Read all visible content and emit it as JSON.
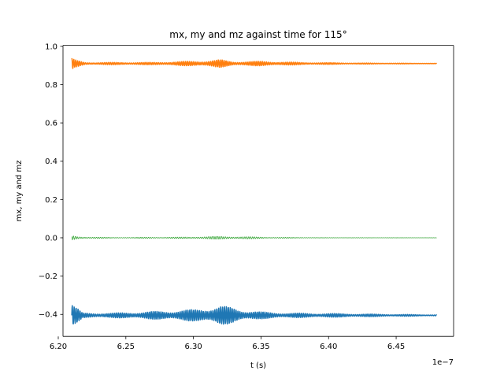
{
  "chart_data": {
    "type": "line",
    "title": "mx, my and mz against time for 115°",
    "xlabel": "t (s)",
    "ylabel": "mx, my and mz",
    "x_offset_label": "1e−7",
    "xlim": [
      6.2035,
      6.4925
    ],
    "ylim": [
      -0.515,
      1.005
    ],
    "x_ticks": [
      6.2,
      6.25,
      6.3,
      6.35,
      6.4,
      6.45
    ],
    "x_tick_labels": [
      "6.20",
      "6.25",
      "6.30",
      "6.35",
      "6.40",
      "6.45"
    ],
    "y_ticks": [
      -0.4,
      -0.2,
      0.0,
      0.2,
      0.4,
      0.6,
      0.8,
      1.0
    ],
    "y_tick_labels": [
      "−0.4",
      "−0.2",
      "0.0",
      "0.2",
      "0.4",
      "0.6",
      "0.8",
      "1.0"
    ],
    "x_range": [
      6.21,
      6.48
    ],
    "grid": false,
    "series": [
      {
        "color": "#1f77b4",
        "stroke_width": 1.5,
        "baseline": -0.405,
        "oscillation_envelope": [
          {
            "x": 6.21,
            "amp": 0.07
          },
          {
            "x": 6.212,
            "amp": 0.05
          },
          {
            "x": 6.218,
            "amp": 0.012
          },
          {
            "x": 6.24,
            "amp": 0.012
          },
          {
            "x": 6.27,
            "amp": 0.02
          },
          {
            "x": 6.3,
            "amp": 0.03
          },
          {
            "x": 6.31,
            "amp": 0.04
          },
          {
            "x": 6.32,
            "amp": 0.05
          },
          {
            "x": 6.33,
            "amp": 0.04
          },
          {
            "x": 6.34,
            "amp": 0.025
          },
          {
            "x": 6.35,
            "amp": 0.018
          },
          {
            "x": 6.37,
            "amp": 0.012
          },
          {
            "x": 6.4,
            "amp": 0.01
          },
          {
            "x": 6.44,
            "amp": 0.006
          },
          {
            "x": 6.48,
            "amp": 0.003
          }
        ]
      },
      {
        "color": "#ff7f0e",
        "stroke_width": 1.5,
        "baseline": 0.91,
        "oscillation_envelope": [
          {
            "x": 6.21,
            "amp": 0.03
          },
          {
            "x": 6.212,
            "amp": 0.02
          },
          {
            "x": 6.22,
            "amp": 0.006
          },
          {
            "x": 6.27,
            "amp": 0.006
          },
          {
            "x": 6.31,
            "amp": 0.015
          },
          {
            "x": 6.32,
            "amp": 0.02
          },
          {
            "x": 6.33,
            "amp": 0.01
          },
          {
            "x": 6.35,
            "amp": 0.012
          },
          {
            "x": 6.38,
            "amp": 0.006
          },
          {
            "x": 6.42,
            "amp": 0.003
          },
          {
            "x": 6.48,
            "amp": 0.001
          }
        ]
      },
      {
        "color": "#2ca02c",
        "stroke_width": 0.7,
        "baseline": 0.0,
        "oscillation_envelope": [
          {
            "x": 6.21,
            "amp": 0.012
          },
          {
            "x": 6.215,
            "amp": 0.006
          },
          {
            "x": 6.24,
            "amp": 0.002
          },
          {
            "x": 6.29,
            "amp": 0.004
          },
          {
            "x": 6.32,
            "amp": 0.008
          },
          {
            "x": 6.34,
            "amp": 0.006
          },
          {
            "x": 6.36,
            "amp": 0.003
          },
          {
            "x": 6.4,
            "amp": 0.001
          },
          {
            "x": 6.48,
            "amp": 0.0005
          }
        ]
      }
    ]
  }
}
